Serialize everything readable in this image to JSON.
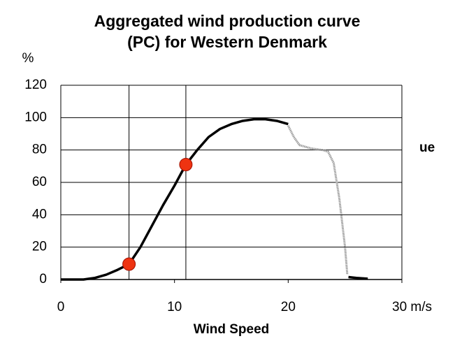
{
  "chart_data": {
    "type": "line",
    "title": [
      "Aggregated wind production curve",
      "(PC) for Western Denmark"
    ],
    "y_label": "%",
    "x_label": "Wind Speed",
    "annotation": "ue",
    "xlim": [
      0,
      30
    ],
    "xticks": [
      0,
      10,
      20,
      {
        "value": 30,
        "label": "30 m/s"
      }
    ],
    "ylim": [
      0,
      120
    ],
    "yticks": [
      0,
      20,
      40,
      60,
      80,
      100,
      120
    ],
    "grid": true,
    "band": [
      6,
      11
    ],
    "series": [
      {
        "color": "#000000",
        "x": [
          0,
          2,
          3,
          4,
          5,
          6,
          7,
          8,
          9,
          10,
          11,
          12,
          13,
          14,
          15,
          16,
          17,
          18,
          19,
          20
        ],
        "values": [
          0,
          0,
          1,
          3,
          6,
          9.5,
          20,
          33,
          46,
          58,
          71,
          80,
          88,
          93,
          96,
          98,
          99,
          99,
          98,
          96
        ]
      },
      {
        "color": "#999999",
        "x": [
          20,
          20.5,
          21,
          22,
          23,
          23.5,
          24,
          24.5,
          25,
          25.2
        ],
        "values": [
          95,
          88,
          83,
          81,
          80,
          79,
          72,
          50,
          20,
          3
        ]
      },
      {
        "color": "#000000",
        "x": [
          25.3,
          26,
          27
        ],
        "values": [
          1.5,
          1,
          0.5
        ]
      }
    ],
    "points": {
      "color": "#ee3311",
      "x": [
        6,
        11
      ],
      "values": [
        9.5,
        71
      ]
    }
  }
}
